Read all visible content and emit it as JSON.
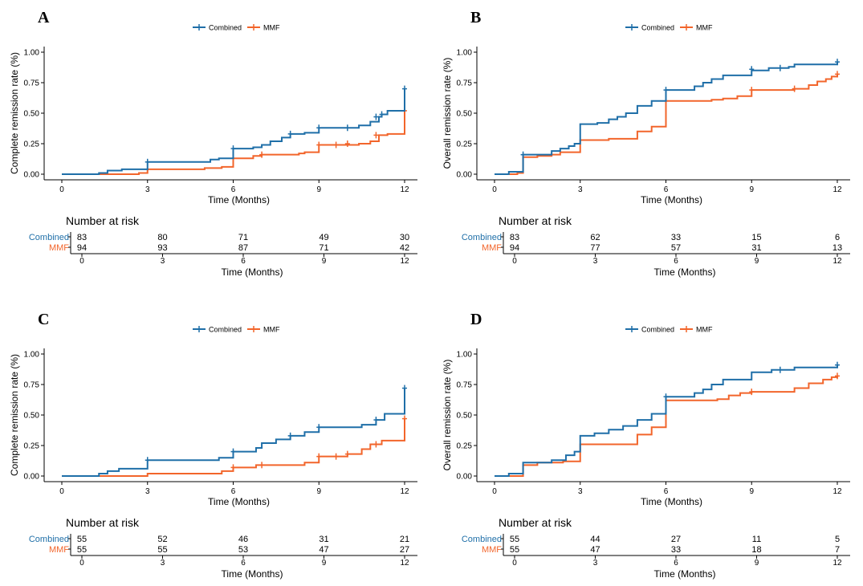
{
  "colors": {
    "combined": "#1f6fa8",
    "mmf": "#f2652b",
    "axis": "#000000"
  },
  "shared": {
    "x_label": "Time (Months)",
    "risk_title": "Number at risk",
    "legend_entries": [
      "Combined",
      "MMF"
    ]
  },
  "chart_data": [
    {
      "panel": "A",
      "type": "line",
      "step": true,
      "ylabel": "Complete remission rate (%)",
      "xlabel": "Time (Months)",
      "xlim": [
        0,
        12
      ],
      "ylim": [
        0,
        1
      ],
      "x_ticks": [
        0,
        3,
        6,
        9,
        12
      ],
      "y_ticks": [
        "0.00",
        "0.25",
        "0.50",
        "0.75",
        "1.00"
      ],
      "legend": "top-center",
      "series": [
        {
          "name": "Combined",
          "points": [
            [
              0,
              0
            ],
            [
              1.3,
              0.01
            ],
            [
              1.6,
              0.03
            ],
            [
              2.1,
              0.04
            ],
            [
              3,
              0.1
            ],
            [
              5.2,
              0.12
            ],
            [
              5.5,
              0.13
            ],
            [
              6,
              0.21
            ],
            [
              6.7,
              0.22
            ],
            [
              7,
              0.24
            ],
            [
              7.3,
              0.27
            ],
            [
              7.7,
              0.3
            ],
            [
              8,
              0.33
            ],
            [
              8.5,
              0.34
            ],
            [
              9,
              0.38
            ],
            [
              9.7,
              0.38
            ],
            [
              10.4,
              0.4
            ],
            [
              10.8,
              0.43
            ],
            [
              11.1,
              0.47
            ],
            [
              11.2,
              0.49
            ],
            [
              11.4,
              0.52
            ],
            [
              12,
              0.7
            ]
          ],
          "censor_points": [
            [
              3,
              0.1
            ],
            [
              6,
              0.21
            ],
            [
              8,
              0.33
            ],
            [
              9,
              0.38
            ],
            [
              10,
              0.38
            ],
            [
              11,
              0.47
            ],
            [
              11.2,
              0.49
            ],
            [
              12,
              0.7
            ]
          ]
        },
        {
          "name": "MMF",
          "points": [
            [
              0,
              0
            ],
            [
              2.7,
              0.01
            ],
            [
              3,
              0.04
            ],
            [
              5,
              0.05
            ],
            [
              5.6,
              0.06
            ],
            [
              6,
              0.13
            ],
            [
              6.7,
              0.15
            ],
            [
              7,
              0.16
            ],
            [
              8.3,
              0.17
            ],
            [
              8.5,
              0.18
            ],
            [
              9,
              0.24
            ],
            [
              10.4,
              0.25
            ],
            [
              10.8,
              0.27
            ],
            [
              11.1,
              0.32
            ],
            [
              11.4,
              0.33
            ],
            [
              12,
              0.52
            ]
          ],
          "censor_points": [
            [
              7,
              0.16
            ],
            [
              9,
              0.24
            ],
            [
              9.6,
              0.24
            ],
            [
              10,
              0.25
            ],
            [
              11,
              0.32
            ],
            [
              12,
              0.52
            ]
          ]
        }
      ],
      "risk_table": {
        "rows": [
          {
            "name": "Combined",
            "values": [
              83,
              80,
              71,
              49,
              30
            ]
          },
          {
            "name": "MMF",
            "values": [
              94,
              93,
              87,
              71,
              42
            ]
          }
        ],
        "x_ticks": [
          0,
          3,
          6,
          9,
          12
        ]
      }
    },
    {
      "panel": "B",
      "type": "line",
      "step": true,
      "ylabel": "Overall remission rate (%)",
      "xlabel": "Time (Months)",
      "xlim": [
        0,
        12
      ],
      "ylim": [
        0,
        1
      ],
      "x_ticks": [
        0,
        3,
        6,
        9,
        12
      ],
      "y_ticks": [
        "0.00",
        "0.25",
        "0.50",
        "0.75",
        "1.00"
      ],
      "legend": "top-center",
      "series": [
        {
          "name": "Combined",
          "points": [
            [
              0,
              0
            ],
            [
              0.5,
              0.02
            ],
            [
              1,
              0.16
            ],
            [
              2,
              0.19
            ],
            [
              2.3,
              0.21
            ],
            [
              2.6,
              0.23
            ],
            [
              2.8,
              0.25
            ],
            [
              3,
              0.41
            ],
            [
              3.6,
              0.42
            ],
            [
              4,
              0.45
            ],
            [
              4.3,
              0.47
            ],
            [
              4.6,
              0.5
            ],
            [
              5,
              0.56
            ],
            [
              5.5,
              0.6
            ],
            [
              6,
              0.69
            ],
            [
              7,
              0.72
            ],
            [
              7.3,
              0.75
            ],
            [
              7.6,
              0.78
            ],
            [
              8,
              0.81
            ],
            [
              9,
              0.85
            ],
            [
              9.6,
              0.87
            ],
            [
              10.3,
              0.88
            ],
            [
              10.5,
              0.9
            ],
            [
              12,
              0.92
            ]
          ],
          "censor_points": [
            [
              1,
              0.16
            ],
            [
              6,
              0.69
            ],
            [
              9,
              0.86
            ],
            [
              10,
              0.87
            ],
            [
              12,
              0.92
            ]
          ]
        },
        {
          "name": "MMF",
          "points": [
            [
              0,
              0
            ],
            [
              0.8,
              0.01
            ],
            [
              1,
              0.14
            ],
            [
              1.5,
              0.15
            ],
            [
              2,
              0.16
            ],
            [
              2.3,
              0.18
            ],
            [
              3,
              0.28
            ],
            [
              4,
              0.29
            ],
            [
              5,
              0.35
            ],
            [
              5.5,
              0.39
            ],
            [
              6,
              0.6
            ],
            [
              7.6,
              0.61
            ],
            [
              8,
              0.62
            ],
            [
              8.5,
              0.64
            ],
            [
              9,
              0.69
            ],
            [
              10.5,
              0.7
            ],
            [
              11,
              0.73
            ],
            [
              11.3,
              0.76
            ],
            [
              11.6,
              0.78
            ],
            [
              11.8,
              0.8
            ],
            [
              12,
              0.82
            ]
          ],
          "censor_points": [
            [
              9,
              0.69
            ],
            [
              10.5,
              0.7
            ],
            [
              12,
              0.82
            ]
          ]
        }
      ],
      "risk_table": {
        "rows": [
          {
            "name": "Combined",
            "values": [
              83,
              62,
              33,
              15,
              6
            ]
          },
          {
            "name": "MMF",
            "values": [
              94,
              77,
              57,
              31,
              13
            ]
          }
        ],
        "x_ticks": [
          0,
          3,
          6,
          9,
          12
        ]
      }
    },
    {
      "panel": "C",
      "type": "line",
      "step": true,
      "ylabel": "Complete remission rate (%)",
      "xlabel": "Time (Months)",
      "xlim": [
        0,
        12
      ],
      "ylim": [
        0,
        1
      ],
      "x_ticks": [
        0,
        3,
        6,
        9,
        12
      ],
      "y_ticks": [
        "0.00",
        "0.25",
        "0.50",
        "0.75",
        "1.00"
      ],
      "legend": "top-center",
      "series": [
        {
          "name": "Combined",
          "points": [
            [
              0,
              0
            ],
            [
              1.3,
              0.02
            ],
            [
              1.6,
              0.04
            ],
            [
              2,
              0.06
            ],
            [
              3,
              0.13
            ],
            [
              5.5,
              0.15
            ],
            [
              6,
              0.2
            ],
            [
              6.8,
              0.23
            ],
            [
              7,
              0.27
            ],
            [
              7.5,
              0.3
            ],
            [
              8,
              0.33
            ],
            [
              8.5,
              0.36
            ],
            [
              9,
              0.4
            ],
            [
              10,
              0.4
            ],
            [
              10.5,
              0.42
            ],
            [
              11,
              0.46
            ],
            [
              11.3,
              0.51
            ],
            [
              12,
              0.72
            ]
          ],
          "censor_points": [
            [
              3,
              0.13
            ],
            [
              6,
              0.2
            ],
            [
              8,
              0.33
            ],
            [
              9,
              0.4
            ],
            [
              11,
              0.46
            ],
            [
              12,
              0.72
            ]
          ]
        },
        {
          "name": "MMF",
          "points": [
            [
              0,
              0
            ],
            [
              3,
              0.02
            ],
            [
              5.6,
              0.04
            ],
            [
              6,
              0.07
            ],
            [
              6.8,
              0.09
            ],
            [
              8.5,
              0.11
            ],
            [
              9,
              0.16
            ],
            [
              10,
              0.18
            ],
            [
              10.5,
              0.22
            ],
            [
              10.8,
              0.26
            ],
            [
              11.2,
              0.29
            ],
            [
              12,
              0.47
            ]
          ],
          "censor_points": [
            [
              6,
              0.07
            ],
            [
              7,
              0.09
            ],
            [
              9,
              0.16
            ],
            [
              9.6,
              0.16
            ],
            [
              10,
              0.18
            ],
            [
              11,
              0.26
            ],
            [
              12,
              0.47
            ]
          ]
        }
      ],
      "risk_table": {
        "rows": [
          {
            "name": "Combined",
            "values": [
              55,
              52,
              46,
              31,
              21
            ]
          },
          {
            "name": "MMF",
            "values": [
              55,
              55,
              53,
              47,
              27
            ]
          }
        ],
        "x_ticks": [
          0,
          3,
          6,
          9,
          12
        ]
      }
    },
    {
      "panel": "D",
      "type": "line",
      "step": true,
      "ylabel": "Overall remission rate (%)",
      "xlabel": "Time (Months)",
      "xlim": [
        0,
        12
      ],
      "ylim": [
        0,
        1
      ],
      "x_ticks": [
        0,
        3,
        6,
        9,
        12
      ],
      "y_ticks": [
        "0.00",
        "0.25",
        "0.50",
        "0.75",
        "1.00"
      ],
      "legend": "top-center",
      "series": [
        {
          "name": "Combined",
          "points": [
            [
              0,
              0
            ],
            [
              0.5,
              0.02
            ],
            [
              1,
              0.11
            ],
            [
              2,
              0.13
            ],
            [
              2.5,
              0.17
            ],
            [
              2.8,
              0.2
            ],
            [
              3,
              0.33
            ],
            [
              3.5,
              0.35
            ],
            [
              4,
              0.38
            ],
            [
              4.5,
              0.41
            ],
            [
              5,
              0.46
            ],
            [
              5.5,
              0.51
            ],
            [
              6,
              0.65
            ],
            [
              7,
              0.68
            ],
            [
              7.3,
              0.71
            ],
            [
              7.6,
              0.75
            ],
            [
              8,
              0.79
            ],
            [
              9,
              0.85
            ],
            [
              9.7,
              0.87
            ],
            [
              10.5,
              0.89
            ],
            [
              12,
              0.91
            ]
          ],
          "censor_points": [
            [
              6,
              0.65
            ],
            [
              10,
              0.87
            ],
            [
              12,
              0.91
            ]
          ]
        },
        {
          "name": "MMF",
          "points": [
            [
              0,
              0
            ],
            [
              1,
              0.09
            ],
            [
              1.5,
              0.11
            ],
            [
              2.4,
              0.12
            ],
            [
              3,
              0.26
            ],
            [
              5,
              0.34
            ],
            [
              5.5,
              0.4
            ],
            [
              6,
              0.62
            ],
            [
              7.8,
              0.63
            ],
            [
              8.2,
              0.66
            ],
            [
              8.6,
              0.68
            ],
            [
              9,
              0.69
            ],
            [
              10.5,
              0.72
            ],
            [
              11,
              0.76
            ],
            [
              11.5,
              0.79
            ],
            [
              11.8,
              0.81
            ],
            [
              12,
              0.82
            ]
          ],
          "censor_points": [
            [
              9,
              0.69
            ],
            [
              12,
              0.82
            ]
          ]
        }
      ],
      "risk_table": {
        "rows": [
          {
            "name": "Combined",
            "values": [
              55,
              44,
              27,
              11,
              5
            ]
          },
          {
            "name": "MMF",
            "values": [
              55,
              47,
              33,
              18,
              7
            ]
          }
        ],
        "x_ticks": [
          0,
          3,
          6,
          9,
          12
        ]
      }
    }
  ]
}
